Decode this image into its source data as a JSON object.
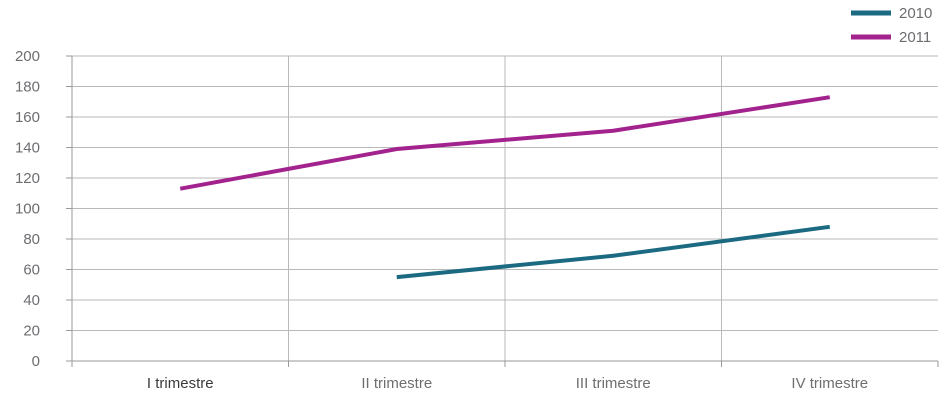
{
  "chart_data": {
    "type": "line",
    "title": "",
    "xlabel": "",
    "ylabel": "",
    "categories": [
      "I trimestre",
      "II trimestre",
      "III trimestre",
      "IV trimestre"
    ],
    "ylim": [
      0,
      200
    ],
    "y_ticks": [
      0,
      20,
      40,
      60,
      80,
      100,
      120,
      140,
      160,
      180,
      200
    ],
    "grid": {
      "horizontal": true,
      "vertical": true
    },
    "legend_position": "top-right",
    "series": [
      {
        "name": "2010",
        "color": "#1b6a82",
        "values": [
          null,
          55,
          69,
          88
        ]
      },
      {
        "name": "2011",
        "color": "#a3238e",
        "values": [
          113,
          139,
          151,
          173
        ]
      }
    ]
  }
}
